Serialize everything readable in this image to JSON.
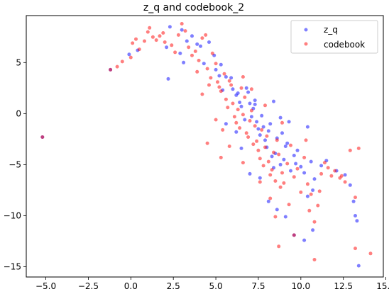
{
  "chart_data": {
    "type": "scatter",
    "title": "z_q and codebook_2",
    "xlabel": "",
    "ylabel": "",
    "xlim": [
      -6.15,
      14.85
    ],
    "ylim": [
      -16.0,
      9.6
    ],
    "xticks": [
      -5.0,
      -2.5,
      0.0,
      2.5,
      5.0,
      7.5,
      10.0,
      12.5,
      15.0
    ],
    "xtick_labels": [
      "−5.0",
      "−2.5",
      "0.0",
      "2.5",
      "5.0",
      "7.5",
      "10.0",
      "12.5",
      "15.0"
    ],
    "yticks": [
      -15,
      -10,
      -5,
      0,
      5
    ],
    "ytick_labels": [
      "−15",
      "−10",
      "−5",
      "0",
      "5"
    ],
    "grid": false,
    "legend": "top-right",
    "series": [
      {
        "name": "z_q",
        "color": "#0000ff",
        "alpha": 0.5,
        "points": [
          [
            -5.2,
            -2.3
          ],
          [
            -1.2,
            4.3
          ],
          [
            -0.1,
            5.8
          ],
          [
            0.4,
            6.2
          ],
          [
            2.2,
            3.4
          ],
          [
            2.1,
            6.5
          ],
          [
            2.3,
            8.5
          ],
          [
            3.0,
            8.2
          ],
          [
            2.9,
            5.9
          ],
          [
            3.1,
            5.0
          ],
          [
            3.3,
            7.1
          ],
          [
            3.6,
            7.6
          ],
          [
            3.9,
            6.8
          ],
          [
            4.1,
            6.6
          ],
          [
            4.3,
            4.9
          ],
          [
            4.6,
            7.0
          ],
          [
            4.9,
            5.7
          ],
          [
            5.0,
            4.3
          ],
          [
            5.2,
            3.7
          ],
          [
            5.3,
            4.8
          ],
          [
            5.4,
            2.3
          ],
          [
            5.6,
            3.6
          ],
          [
            5.9,
            3.5
          ],
          [
            6.0,
            2.4
          ],
          [
            6.2,
            1.8
          ],
          [
            6.3,
            2.0
          ],
          [
            6.4,
            1.1
          ],
          [
            6.5,
            0.7
          ],
          [
            6.7,
            -0.6
          ],
          [
            6.9,
            2.1
          ],
          [
            7.0,
            1.0
          ],
          [
            7.1,
            -0.3
          ],
          [
            7.2,
            0.5
          ],
          [
            7.3,
            1.3
          ],
          [
            7.4,
            -0.8
          ],
          [
            7.5,
            -1.5
          ],
          [
            7.6,
            -2.1
          ],
          [
            7.7,
            -0.2
          ],
          [
            7.8,
            -1.3
          ],
          [
            7.9,
            -2.6
          ],
          [
            8.0,
            -3.3
          ],
          [
            8.1,
            -1.7
          ],
          [
            8.2,
            -1.0
          ],
          [
            8.3,
            -4.2
          ],
          [
            8.4,
            -5.3
          ],
          [
            8.5,
            -3.9
          ],
          [
            8.6,
            -2.4
          ],
          [
            8.8,
            -5.0
          ],
          [
            8.9,
            -1.9
          ],
          [
            9.0,
            -4.5
          ],
          [
            9.1,
            -3.2
          ],
          [
            9.3,
            -0.8
          ],
          [
            9.4,
            -5.6
          ],
          [
            9.6,
            -4.1
          ],
          [
            9.8,
            -3.6
          ],
          [
            10.0,
            -5.2
          ],
          [
            10.2,
            -5.8
          ],
          [
            10.4,
            -1.3
          ],
          [
            10.6,
            -4.7
          ],
          [
            10.8,
            -6.4
          ],
          [
            11.2,
            -5.1
          ],
          [
            11.5,
            -4.6
          ],
          [
            12.1,
            -5.6
          ],
          [
            12.6,
            -6.0
          ],
          [
            12.9,
            -7.0
          ],
          [
            13.1,
            -8.6
          ],
          [
            13.2,
            -10.0
          ],
          [
            13.3,
            -10.5
          ],
          [
            13.4,
            -14.9
          ],
          [
            10.7,
            -7.5
          ],
          [
            10.4,
            -8.1
          ],
          [
            9.6,
            -11.9
          ],
          [
            9.1,
            -10.1
          ],
          [
            8.6,
            -9.4
          ],
          [
            8.1,
            -8.6
          ],
          [
            7.6,
            -6.3
          ],
          [
            7.0,
            -5.9
          ],
          [
            6.5,
            -3.4
          ],
          [
            6.2,
            -1.8
          ],
          [
            5.6,
            -1.0
          ],
          [
            10.2,
            -12.4
          ],
          [
            10.7,
            -11.4
          ],
          [
            7.3,
            0.9
          ],
          [
            6.8,
            2.5
          ],
          [
            8.4,
            1.2
          ],
          [
            8.8,
            -0.4
          ],
          [
            9.2,
            -2.9
          ],
          [
            9.7,
            -4.9
          ]
        ]
      },
      {
        "name": "codebook",
        "color": "#ff0000",
        "alpha": 0.5,
        "points": [
          [
            -5.2,
            -2.3
          ],
          [
            -1.2,
            4.3
          ],
          [
            -0.8,
            4.6
          ],
          [
            -0.5,
            5.1
          ],
          [
            0.0,
            5.5
          ],
          [
            0.1,
            6.9
          ],
          [
            0.3,
            7.3
          ],
          [
            0.5,
            6.3
          ],
          [
            0.8,
            7.1
          ],
          [
            1.0,
            8.0
          ],
          [
            1.1,
            8.4
          ],
          [
            1.3,
            7.5
          ],
          [
            1.5,
            7.2
          ],
          [
            1.7,
            7.6
          ],
          [
            1.9,
            7.9
          ],
          [
            2.0,
            7.0
          ],
          [
            2.4,
            6.7
          ],
          [
            2.6,
            6.0
          ],
          [
            2.8,
            7.7
          ],
          [
            3.0,
            8.8
          ],
          [
            3.2,
            8.1
          ],
          [
            3.4,
            6.5
          ],
          [
            3.6,
            5.7
          ],
          [
            3.8,
            6.1
          ],
          [
            4.0,
            5.2
          ],
          [
            4.2,
            7.4
          ],
          [
            4.4,
            7.7
          ],
          [
            4.5,
            4.4
          ],
          [
            4.7,
            3.5
          ],
          [
            4.8,
            5.9
          ],
          [
            5.0,
            4.9
          ],
          [
            5.1,
            3.1
          ],
          [
            5.2,
            2.6
          ],
          [
            5.3,
            2.2
          ],
          [
            5.5,
            3.9
          ],
          [
            5.6,
            1.4
          ],
          [
            5.7,
            0.6
          ],
          [
            5.8,
            3.2
          ],
          [
            5.9,
            2.8
          ],
          [
            6.0,
            1.0
          ],
          [
            6.1,
            -0.3
          ],
          [
            6.2,
            -0.9
          ],
          [
            6.3,
            0.4
          ],
          [
            6.4,
            -1.4
          ],
          [
            6.5,
            2.5
          ],
          [
            6.6,
            -0.1
          ],
          [
            6.7,
            1.6
          ],
          [
            6.8,
            -1.9
          ],
          [
            6.9,
            -2.3
          ],
          [
            7.0,
            -0.7
          ],
          [
            7.1,
            0.3
          ],
          [
            7.2,
            -3.0
          ],
          [
            7.3,
            -1.2
          ],
          [
            7.4,
            -2.7
          ],
          [
            7.5,
            -3.6
          ],
          [
            7.6,
            -4.4
          ],
          [
            7.7,
            -1.6
          ],
          [
            7.8,
            -5.1
          ],
          [
            7.9,
            -3.3
          ],
          [
            8.0,
            -2.2
          ],
          [
            8.1,
            -4.7
          ],
          [
            8.2,
            -6.0
          ],
          [
            8.3,
            -5.5
          ],
          [
            8.4,
            -3.8
          ],
          [
            8.5,
            -6.6
          ],
          [
            8.6,
            -2.6
          ],
          [
            8.7,
            -4.0
          ],
          [
            8.8,
            -7.2
          ],
          [
            8.9,
            -5.8
          ],
          [
            9.0,
            -6.8
          ],
          [
            9.2,
            -4.9
          ],
          [
            9.4,
            -3.1
          ],
          [
            9.6,
            -6.2
          ],
          [
            9.8,
            -5.4
          ],
          [
            10.0,
            -7.7
          ],
          [
            10.2,
            -4.3
          ],
          [
            10.4,
            -6.9
          ],
          [
            10.6,
            -7.9
          ],
          [
            10.8,
            -10.6
          ],
          [
            11.0,
            -9.0
          ],
          [
            11.2,
            -5.9
          ],
          [
            11.4,
            -4.8
          ],
          [
            11.6,
            -5.3
          ],
          [
            11.8,
            -6.1
          ],
          [
            12.0,
            -5.6
          ],
          [
            12.3,
            -6.3
          ],
          [
            12.6,
            -6.7
          ],
          [
            12.9,
            -3.6
          ],
          [
            13.2,
            -8.2
          ],
          [
            13.4,
            -3.4
          ],
          [
            13.2,
            -13.2
          ],
          [
            14.1,
            -13.7
          ],
          [
            10.8,
            -14.3
          ],
          [
            9.6,
            -11.9
          ],
          [
            10.5,
            -9.5
          ],
          [
            8.7,
            -13.0
          ],
          [
            8.5,
            -10.1
          ],
          [
            8.2,
            -8.3
          ],
          [
            7.6,
            -6.7
          ],
          [
            6.6,
            -4.8
          ],
          [
            5.8,
            -3.2
          ],
          [
            5.3,
            -4.3
          ],
          [
            4.5,
            -2.9
          ],
          [
            5.0,
            -0.6
          ],
          [
            5.4,
            -1.6
          ],
          [
            4.2,
            1.9
          ],
          [
            3.9,
            4.1
          ],
          [
            4.6,
            2.8
          ],
          [
            6.6,
            3.6
          ],
          [
            7.1,
            2.4
          ],
          [
            7.9,
            0.8
          ],
          [
            8.9,
            -0.9
          ],
          [
            10.3,
            -2.6
          ],
          [
            9.3,
            -8.9
          ],
          [
            11.1,
            -7.6
          ],
          [
            12.4,
            -6.1
          ]
        ]
      }
    ]
  }
}
